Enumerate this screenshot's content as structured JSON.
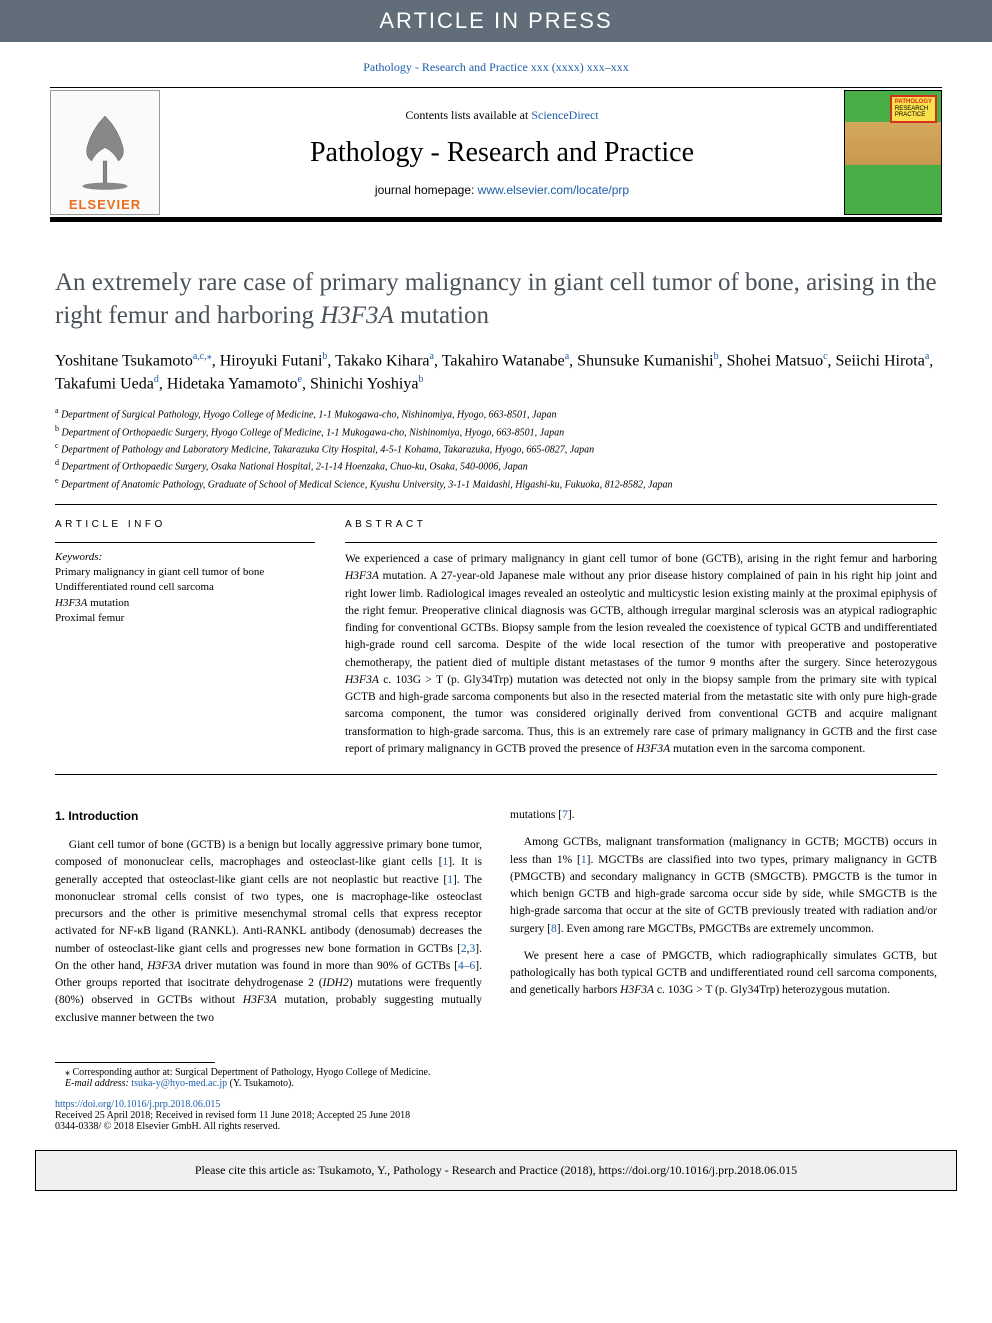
{
  "banner": {
    "text": "ARTICLE IN PRESS"
  },
  "journal_citation": "Pathology - Research and Practice xxx (xxxx) xxx–xxx",
  "header": {
    "contents_text": "Contents lists available at ",
    "contents_link_text": "ScienceDirect",
    "journal_name": "Pathology - Research and Practice",
    "homepage_label": "journal homepage: ",
    "homepage_url": "www.elsevier.com/locate/prp",
    "elsevier_brand": "ELSEVIER",
    "cover_title_lines": "PATHOLOGY\nRESEARCH\nPRACTICE"
  },
  "article_title_part1": "An extremely rare case of primary malignancy in giant cell tumor of bone, arising in the right femur and harboring ",
  "article_title_italic": "H3F3A",
  "article_title_part2": " mutation",
  "authors": [
    {
      "name": "Yoshitane Tsukamoto",
      "aff": "a,c,",
      "corr": "⁎"
    },
    {
      "name": "Hiroyuki Futani",
      "aff": "b"
    },
    {
      "name": "Takako Kihara",
      "aff": "a"
    },
    {
      "name": "Takahiro Watanabe",
      "aff": "a"
    },
    {
      "name": "Shunsuke Kumanishi",
      "aff": "b"
    },
    {
      "name": "Shohei Matsuo",
      "aff": "c"
    },
    {
      "name": "Seiichi Hirota",
      "aff": "a"
    },
    {
      "name": "Takafumi Ueda",
      "aff": "d"
    },
    {
      "name": "Hidetaka Yamamoto",
      "aff": "e"
    },
    {
      "name": "Shinichi Yoshiya",
      "aff": "b"
    }
  ],
  "affiliations": [
    {
      "letter": "a",
      "text": "Department of Surgical Pathology, Hyogo College of Medicine, 1-1 Mukogawa-cho, Nishinomiya, Hyogo, 663-8501, Japan"
    },
    {
      "letter": "b",
      "text": "Department of Orthopaedic Surgery, Hyogo College of Medicine, 1-1 Mukogawa-cho, Nishinomiya, Hyogo, 663-8501, Japan"
    },
    {
      "letter": "c",
      "text": "Department of Pathology and Laboratory Medicine, Takarazuka City Hospital, 4-5-1 Kohama, Takarazuka, Hyogo, 665-0827, Japan"
    },
    {
      "letter": "d",
      "text": "Department of Orthopaedic Surgery, Osaka National Hospital, 2-1-14 Hoenzaka, Chuo-ku, Osaka, 540-0006, Japan"
    },
    {
      "letter": "e",
      "text": "Department of Anatomic Pathology, Graduate of School of Medical Science, Kyushu University, 3-1-1 Maidashi, Higashi-ku, Fukuoka, 812-8582, Japan"
    }
  ],
  "article_info_heading": "ARTICLE INFO",
  "abstract_heading": "ABSTRACT",
  "keywords_label": "Keywords:",
  "keywords": [
    "Primary malignancy in giant cell tumor of bone",
    "Undifferentiated round cell sarcoma",
    "H3F3A mutation",
    "Proximal femur"
  ],
  "abstract": "We experienced a case of primary malignancy in giant cell tumor of bone (GCTB), arising in the right femur and harboring H3F3A mutation. A 27-year-old Japanese male without any prior disease history complained of pain in his right hip joint and right lower limb. Radiological images revealed an osteolytic and multicystic lesion existing mainly at the proximal epiphysis of the right femur. Preoperative clinical diagnosis was GCTB, although irregular marginal sclerosis was an atypical radiographic finding for conventional GCTBs. Biopsy sample from the lesion revealed the coexistence of typical GCTB and undifferentiated high-grade round cell sarcoma. Despite of the wide local resection of the tumor with preoperative and postoperative chemotherapy, the patient died of multiple distant metastases of the tumor 9 months after the surgery. Since heterozygous H3F3A c. 103G > T (p. Gly34Trp) mutation was detected not only in the biopsy sample from the primary site with typical GCTB and high-grade sarcoma components but also in the resected material from the metastatic site with only pure high-grade sarcoma component, the tumor was considered originally derived from conventional GCTB and acquire malignant transformation to high-grade sarcoma. Thus, this is an extremely rare case of primary malignancy in GCTB and the first case report of primary malignancy in GCTB proved the presence of H3F3A mutation even in the sarcoma component.",
  "intro_heading": "1. Introduction",
  "intro_p1": "Giant cell tumor of bone (GCTB) is a benign but locally aggressive primary bone tumor, composed of mononuclear cells, macrophages and osteoclast-like giant cells [1]. It is generally accepted that osteoclast-like giant cells are not neoplastic but reactive [1]. The mononuclear stromal cells consist of two types, one is macrophage-like osteoclast precursors and the other is primitive mesenchymal stromal cells that express receptor activated for NF-κB ligand (RANKL). Anti-RANKL antibody (denosumab) decreases the number of osteoclast-like giant cells and progresses new bone formation in GCTBs [2,3]. On the other hand, H3F3A driver mutation was found in more than 90% of GCTBs [4–6]. Other groups reported that isocitrate dehydrogenase 2 (IDH2) mutations were frequently (80%) observed in GCTBs without H3F3A mutation, probably suggesting mutually exclusive manner between the two",
  "intro_p1_cont": "mutations [7].",
  "intro_p2": "Among GCTBs, malignant transformation (malignancy in GCTB; MGCTB) occurs in less than 1% [1]. MGCTBs are classified into two types, primary malignancy in GCTB (PMGCTB) and secondary malignancy in GCTB (SMGCTB). PMGCTB is the tumor in which benign GCTB and high-grade sarcoma occur side by side, while SMGCTB is the high-grade sarcoma that occur at the site of GCTB previously treated with radiation and/or surgery [8]. Even among rare MGCTBs, PMGCTBs are extremely uncommon.",
  "intro_p3": "We present here a case of PMGCTB, which radiographically simulates GCTB, but pathologically has both typical GCTB and undifferentiated round cell sarcoma components, and genetically harbors H3F3A c. 103G > T (p. Gly34Trp) heterozygous mutation.",
  "footer": {
    "corr_note": "⁎ Corresponding author at: Surgical Depertment of Pathology, Hyogo College of Medicine.",
    "email_label": "E-mail address: ",
    "email": "tsuka-y@hyo-med.ac.jp",
    "email_author": " (Y. Tsukamoto).",
    "doi_url": "https://doi.org/10.1016/j.prp.2018.06.015",
    "received": "Received 25 April 2018; Received in revised form 11 June 2018; Accepted 25 June 2018",
    "copyright": "0344-0338/ © 2018 Elsevier GmbH. All rights reserved."
  },
  "cite_box": "Please cite this article as: Tsukamoto, Y., Pathology - Research and Practice (2018), https://doi.org/10.1016/j.prp.2018.06.015",
  "colors": {
    "banner_bg": "#616d78",
    "banner_text": "#ffffff",
    "link_color": "#1b5daa",
    "elsevier_orange": "#eb6d1e",
    "title_color": "#4a5259",
    "cite_box_bg": "#f0f0f0"
  }
}
